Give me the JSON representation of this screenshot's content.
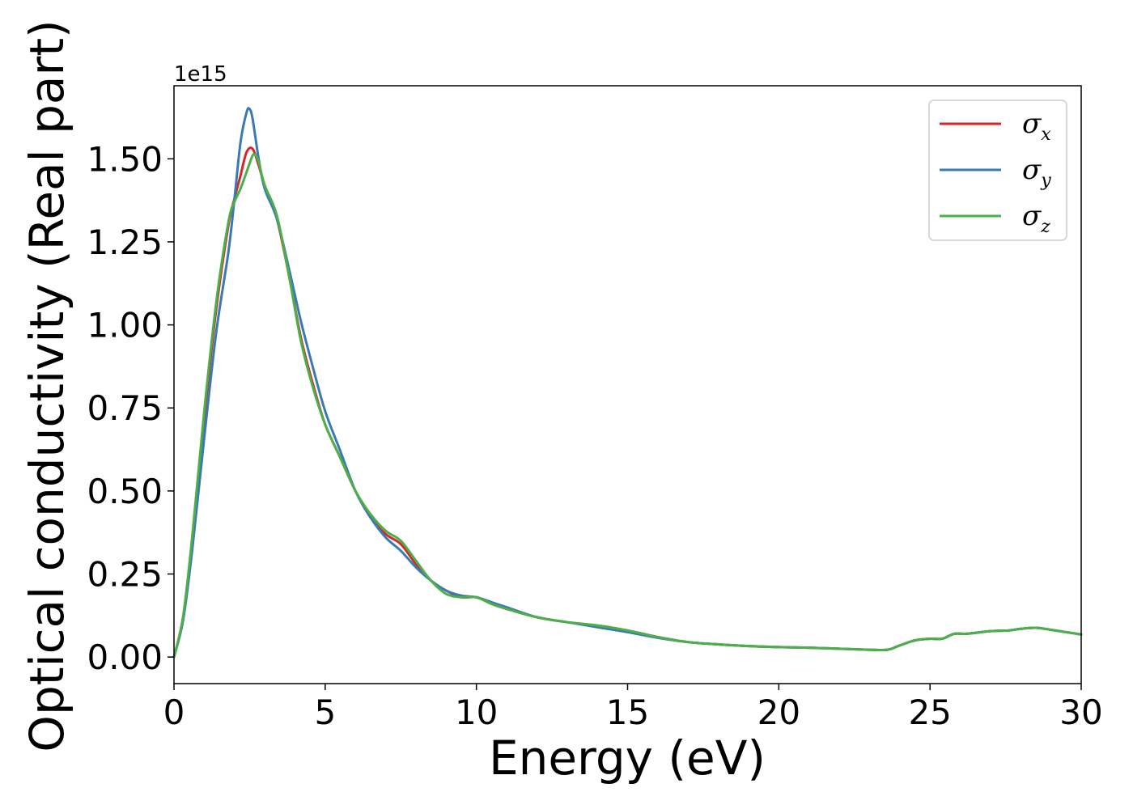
{
  "chart_data": {
    "type": "line",
    "xlabel": "Energy (eV)",
    "ylabel": "Optical conductivity (Real part)",
    "y_offset_label": "1e15",
    "xlim": [
      0,
      30
    ],
    "ylim": [
      -0.08,
      1.72
    ],
    "xticks": [
      0,
      5,
      10,
      15,
      20,
      25,
      30
    ],
    "xtick_labels": [
      "0",
      "5",
      "10",
      "15",
      "20",
      "25",
      "30"
    ],
    "yticks": [
      0.0,
      0.25,
      0.5,
      0.75,
      1.0,
      1.25,
      1.5
    ],
    "ytick_labels": [
      "0.00",
      "0.25",
      "0.50",
      "0.75",
      "1.00",
      "1.25",
      "1.50"
    ],
    "grid": false,
    "legend_position": "top-right",
    "series": [
      {
        "name": "σx",
        "symbol": "σ",
        "subscript": "x",
        "color": "#d62728",
        "x": [
          0,
          0.3,
          0.6,
          1.0,
          1.4,
          1.8,
          2.0,
          2.2,
          2.4,
          2.6,
          2.8,
          3.0,
          3.4,
          3.8,
          4.2,
          4.6,
          5.0,
          5.5,
          6.0,
          6.5,
          7.0,
          7.5,
          8.0,
          8.5,
          9.0,
          9.5,
          10.0,
          10.5,
          11.0,
          12.0,
          13.0,
          14.0,
          15.0,
          16.0,
          17.0,
          18.0,
          19.0,
          20.0,
          21.0,
          22.0,
          23.0,
          23.6,
          24.0,
          24.5,
          25.0,
          25.4,
          25.8,
          26.2,
          27.0,
          27.6,
          28.0,
          28.5,
          29.0,
          29.5,
          30.0
        ],
        "y": [
          0.0,
          0.12,
          0.35,
          0.72,
          1.05,
          1.3,
          1.38,
          1.45,
          1.52,
          1.53,
          1.48,
          1.42,
          1.32,
          1.15,
          0.96,
          0.82,
          0.7,
          0.6,
          0.5,
          0.42,
          0.37,
          0.34,
          0.28,
          0.23,
          0.2,
          0.18,
          0.18,
          0.16,
          0.145,
          0.12,
          0.105,
          0.095,
          0.08,
          0.06,
          0.045,
          0.038,
          0.033,
          0.03,
          0.028,
          0.025,
          0.022,
          0.022,
          0.035,
          0.05,
          0.055,
          0.055,
          0.07,
          0.07,
          0.078,
          0.08,
          0.085,
          0.088,
          0.082,
          0.075,
          0.068
        ]
      },
      {
        "name": "σy",
        "symbol": "σ",
        "subscript": "y",
        "color": "#3a7ab4",
        "x": [
          0,
          0.3,
          0.6,
          1.0,
          1.4,
          1.8,
          2.0,
          2.2,
          2.4,
          2.5,
          2.6,
          2.8,
          3.0,
          3.4,
          3.8,
          4.2,
          4.6,
          5.0,
          5.5,
          6.0,
          6.5,
          7.0,
          7.5,
          8.0,
          8.5,
          9.0,
          9.5,
          10.0,
          10.5,
          11.0,
          12.0,
          13.0,
          14.0,
          15.0,
          16.0,
          17.0,
          18.0,
          19.0,
          20.0,
          21.0,
          22.0,
          23.0,
          23.6,
          24.0,
          24.5,
          25.0,
          25.4,
          25.8,
          26.2,
          27.0,
          27.6,
          28.0,
          28.5,
          29.0,
          29.5,
          30.0
        ],
        "y": [
          0.0,
          0.11,
          0.32,
          0.66,
          0.98,
          1.22,
          1.38,
          1.55,
          1.64,
          1.65,
          1.62,
          1.5,
          1.41,
          1.32,
          1.17,
          1.01,
          0.87,
          0.74,
          0.62,
          0.5,
          0.42,
          0.36,
          0.32,
          0.27,
          0.23,
          0.2,
          0.185,
          0.18,
          0.165,
          0.15,
          0.12,
          0.105,
          0.09,
          0.075,
          0.058,
          0.045,
          0.038,
          0.033,
          0.03,
          0.028,
          0.025,
          0.022,
          0.022,
          0.035,
          0.05,
          0.055,
          0.055,
          0.07,
          0.07,
          0.078,
          0.08,
          0.085,
          0.088,
          0.082,
          0.075,
          0.068
        ]
      },
      {
        "name": "σz",
        "symbol": "σ",
        "subscript": "z",
        "color": "#4daf4a",
        "x": [
          0,
          0.3,
          0.6,
          1.0,
          1.4,
          1.8,
          2.0,
          2.2,
          2.4,
          2.6,
          2.7,
          2.8,
          3.0,
          3.4,
          3.8,
          4.2,
          4.6,
          5.0,
          5.5,
          6.0,
          6.5,
          7.0,
          7.5,
          8.0,
          8.5,
          9.0,
          9.5,
          10.0,
          10.5,
          11.0,
          12.0,
          13.0,
          14.0,
          15.0,
          16.0,
          17.0,
          18.0,
          19.0,
          20.0,
          21.0,
          22.0,
          23.0,
          23.6,
          24.0,
          24.5,
          25.0,
          25.4,
          25.8,
          26.2,
          27.0,
          27.6,
          28.0,
          28.5,
          29.0,
          29.5,
          30.0
        ],
        "y": [
          0.0,
          0.12,
          0.36,
          0.74,
          1.07,
          1.31,
          1.37,
          1.41,
          1.46,
          1.51,
          1.51,
          1.49,
          1.42,
          1.33,
          1.15,
          0.95,
          0.81,
          0.7,
          0.6,
          0.5,
          0.43,
          0.38,
          0.35,
          0.29,
          0.23,
          0.19,
          0.18,
          0.18,
          0.16,
          0.145,
          0.12,
          0.105,
          0.095,
          0.08,
          0.06,
          0.045,
          0.038,
          0.033,
          0.03,
          0.028,
          0.025,
          0.022,
          0.022,
          0.035,
          0.05,
          0.055,
          0.055,
          0.07,
          0.07,
          0.078,
          0.08,
          0.085,
          0.088,
          0.082,
          0.075,
          0.068
        ]
      }
    ]
  }
}
